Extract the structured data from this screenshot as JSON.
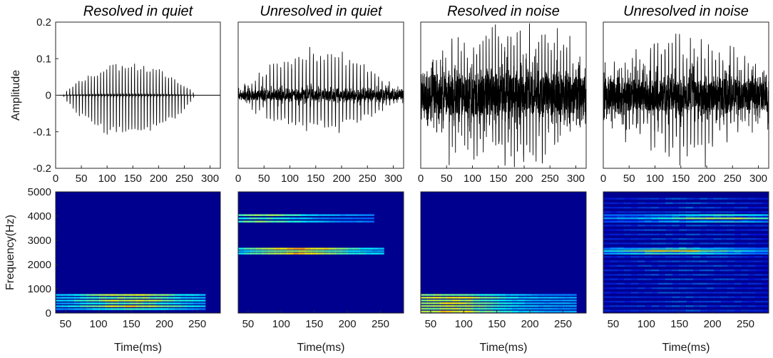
{
  "colors": {
    "waveform": "#000000",
    "spectrogram_background": "#00008f",
    "colormap": "jet",
    "axes": "#262626"
  },
  "chart_data": [
    {
      "type": "line",
      "title": "Resolved in quiet",
      "xlabel": "",
      "ylabel": "Amplitude",
      "xlim": [
        0,
        320
      ],
      "ylim": [
        -0.2,
        0.2
      ],
      "xticks": [
        "0",
        "50",
        "100",
        "150",
        "200",
        "250",
        "300"
      ],
      "yticks": [
        "0.2",
        "0.1",
        "0",
        "-0.1",
        "-0.2"
      ],
      "grid": false,
      "signal": {
        "onset_ms": 15,
        "offset_ms": 270,
        "peak_amplitude": 0.09,
        "trough_amplitude": -0.12,
        "noise_level": 0.0,
        "period_ms": 6
      },
      "series": [
        {
          "values": [
            {
              "x": 15,
              "y": 0.0
            },
            {
              "x": 150,
              "y": 0.09
            },
            {
              "x": 150,
              "y": -0.12
            },
            {
              "x": 310,
              "y": 0.0
            }
          ]
        }
      ]
    },
    {
      "type": "line",
      "title": "Unresolved in quiet",
      "xlabel": "",
      "ylabel": "",
      "xlim": [
        0,
        320
      ],
      "ylim": [
        -0.2,
        0.2
      ],
      "xticks": [
        "0",
        "50",
        "100",
        "150",
        "200",
        "250",
        "300"
      ],
      "grid": false,
      "signal": {
        "onset_ms": 5,
        "offset_ms": 310,
        "peak_amplitude": 0.12,
        "trough_amplitude": -0.1,
        "noise_level": 0.012,
        "period_ms": 7
      },
      "series": [
        {
          "values": [
            {
              "x": 5,
              "y": 0.0
            },
            {
              "x": 165,
              "y": 0.12
            },
            {
              "x": 130,
              "y": -0.1
            },
            {
              "x": 310,
              "y": 0.0
            }
          ]
        }
      ]
    },
    {
      "type": "line",
      "title": "Resolved in noise",
      "xlabel": "",
      "ylabel": "",
      "xlim": [
        0,
        320
      ],
      "ylim": [
        -0.2,
        0.2
      ],
      "xticks": [
        "0",
        "50",
        "100",
        "150",
        "200",
        "250",
        "300"
      ],
      "grid": false,
      "signal": {
        "onset_ms": 0,
        "offset_ms": 320,
        "peak_amplitude": 0.18,
        "trough_amplitude": -0.18,
        "noise_level": 0.05,
        "period_ms": 6
      },
      "series": [
        {
          "values": [
            {
              "x": 0,
              "y": 0.0
            },
            {
              "x": 120,
              "y": 0.18
            },
            {
              "x": 180,
              "y": -0.18
            },
            {
              "x": 320,
              "y": 0.0
            }
          ]
        }
      ]
    },
    {
      "type": "line",
      "title": "Unresolved in noise",
      "xlabel": "",
      "ylabel": "",
      "xlim": [
        0,
        320
      ],
      "ylim": [
        -0.2,
        0.2
      ],
      "xticks": [
        "0",
        "50",
        "100",
        "150",
        "200",
        "250",
        "300"
      ],
      "grid": false,
      "signal": {
        "onset_ms": 0,
        "offset_ms": 320,
        "peak_amplitude": 0.14,
        "trough_amplitude": -0.15,
        "noise_level": 0.04,
        "period_ms": 7
      },
      "series": [
        {
          "values": [
            {
              "x": 0,
              "y": 0.0
            },
            {
              "x": 165,
              "y": 0.14
            },
            {
              "x": 95,
              "y": -0.15
            },
            {
              "x": 320,
              "y": 0.0
            }
          ]
        }
      ]
    },
    {
      "type": "heatmap",
      "title": "",
      "xlabel": "Time(ms)",
      "ylabel": "Frequency(Hz)",
      "xlim": [
        35,
        285
      ],
      "ylim": [
        0,
        5000
      ],
      "xticks": [
        "50",
        "100",
        "150",
        "200",
        "250"
      ],
      "yticks": [
        "5000",
        "4000",
        "3000",
        "2000",
        "1000",
        "0"
      ],
      "colormap": "jet",
      "energy_bands": [
        {
          "f0": 100,
          "f1": 800,
          "t0": 35,
          "t1": 262,
          "peak_t": 150,
          "intensity": 0.8
        }
      ]
    },
    {
      "type": "heatmap",
      "title": "",
      "xlabel": "Time(ms)",
      "ylabel": "",
      "xlim": [
        35,
        285
      ],
      "ylim": [
        0,
        5000
      ],
      "xticks": [
        "50",
        "100",
        "150",
        "200",
        "250"
      ],
      "colormap": "jet",
      "energy_bands": [
        {
          "f0": 2400,
          "f1": 2700,
          "t0": 35,
          "t1": 255,
          "peak_t": 130,
          "intensity": 0.9
        },
        {
          "f0": 3700,
          "f1": 4100,
          "t0": 35,
          "t1": 240,
          "peak_t": 70,
          "intensity": 0.65
        }
      ]
    },
    {
      "type": "heatmap",
      "title": "",
      "xlabel": "Time(ms)",
      "ylabel": "",
      "xlim": [
        35,
        285
      ],
      "ylim": [
        0,
        5000
      ],
      "xticks": [
        "50",
        "100",
        "150",
        "200",
        "250"
      ],
      "colormap": "jet",
      "energy_bands": [
        {
          "f0": 0,
          "f1": 800,
          "t0": 35,
          "t1": 270,
          "peak_t": 75,
          "intensity": 0.85
        }
      ]
    },
    {
      "type": "heatmap",
      "title": "",
      "xlabel": "Time(ms)",
      "ylabel": "",
      "xlim": [
        35,
        285
      ],
      "ylim": [
        0,
        5000
      ],
      "xticks": [
        "50",
        "100",
        "150",
        "200",
        "250"
      ],
      "colormap": "jet",
      "energy_bands": [
        {
          "f0": 2400,
          "f1": 2700,
          "t0": 35,
          "t1": 285,
          "peak_t": 140,
          "intensity": 0.8
        },
        {
          "f0": 3700,
          "f1": 4100,
          "t0": 35,
          "t1": 285,
          "peak_t": 210,
          "intensity": 0.7
        },
        {
          "f0": 0,
          "f1": 4800,
          "t0": 35,
          "t1": 285,
          "peak_t": 160,
          "intensity": 0.28
        }
      ]
    }
  ]
}
